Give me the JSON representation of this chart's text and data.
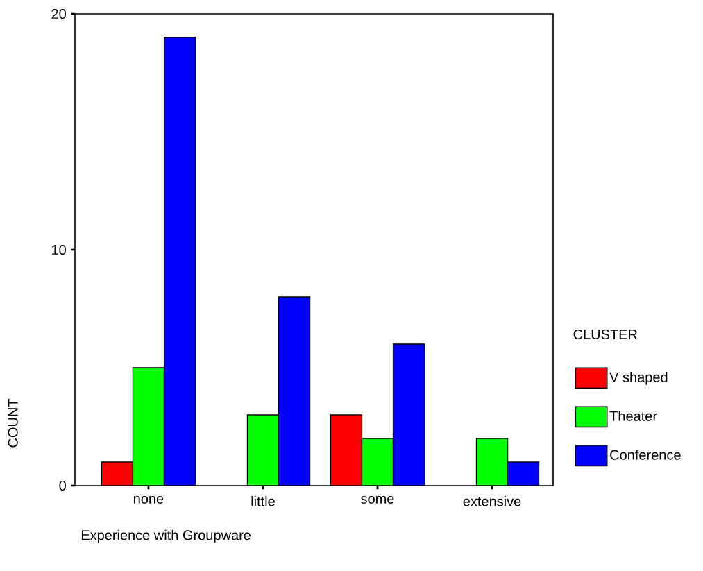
{
  "chart_data": {
    "type": "bar",
    "xlabel": "Experience with Groupware",
    "ylabel": "COUNT",
    "legend_title": "CLUSTER",
    "legend": "right",
    "categories": [
      "none",
      "little",
      "some",
      "extensive"
    ],
    "series": [
      {
        "name": "V shaped",
        "color": "#ff0000",
        "values": [
          1,
          null,
          3,
          null
        ]
      },
      {
        "name": "Theater",
        "color": "#00ff00",
        "values": [
          5,
          3,
          2,
          2
        ]
      },
      {
        "name": "Conference",
        "color": "#0000ff",
        "values": [
          19,
          8,
          6,
          1
        ]
      }
    ],
    "ylim": [
      0,
      20
    ],
    "yticks": [
      0,
      10,
      20
    ]
  }
}
